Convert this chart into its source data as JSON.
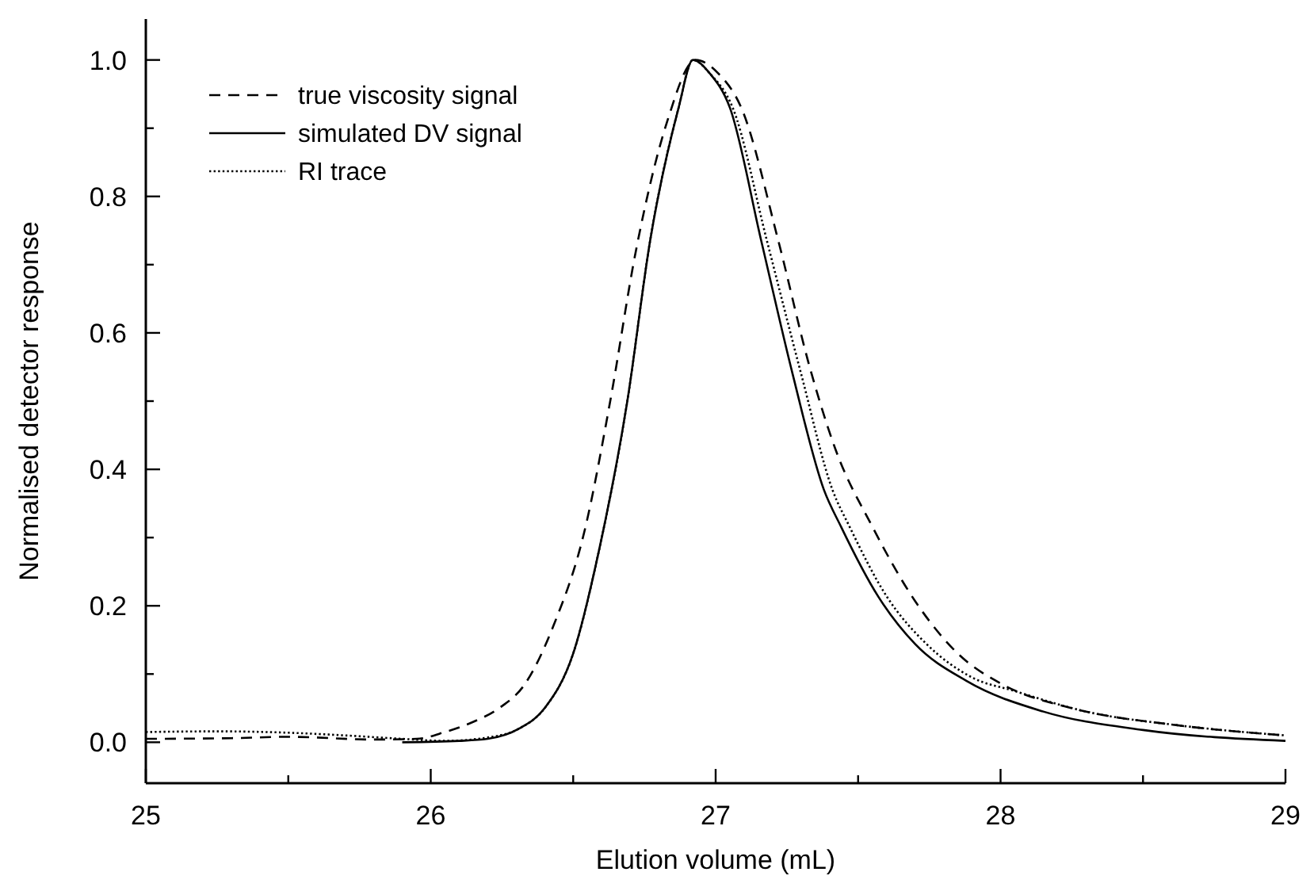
{
  "chart_data": {
    "type": "line",
    "xlabel": "Elution volume (mL)",
    "ylabel": "Normalised detector response",
    "xlim": [
      25,
      29
    ],
    "ylim": [
      -0.06,
      1.06
    ],
    "xticks": [
      25,
      {
        "value": 25.5,
        "label": null
      },
      26,
      {
        "value": 26.5,
        "label": null
      },
      27,
      {
        "value": 27.5,
        "label": null
      },
      28,
      {
        "value": 28.5,
        "label": null
      },
      29
    ],
    "yticks": [
      {
        "value": 0,
        "label": "0.0"
      },
      {
        "value": 0.1,
        "label": null
      },
      0.2,
      {
        "value": 0.3,
        "label": null
      },
      0.4,
      {
        "value": 0.5,
        "label": null
      },
      0.6,
      {
        "value": 0.7,
        "label": null
      },
      0.8,
      {
        "value": 0.9,
        "label": null
      },
      {
        "value": 1,
        "label": "1.0"
      }
    ],
    "grid": false,
    "legend": "top left",
    "series": [
      {
        "name": "true viscosity signal",
        "color": "#000000",
        "line_style": "dashed",
        "x": [
          25,
          25.3,
          25.5,
          25.8,
          25.95,
          26.05,
          26.15,
          26.24,
          26.33,
          26.43,
          26.54,
          26.63,
          26.72,
          26.83,
          26.93,
          27.01,
          27.09,
          27.22,
          27.33,
          27.42,
          27.55,
          27.7,
          27.85,
          28.01,
          28.25,
          28.62,
          29
        ],
        "values": [
          0.005,
          0.006,
          0.008,
          0.004,
          0.005,
          0.015,
          0.03,
          0.05,
          0.085,
          0.17,
          0.31,
          0.5,
          0.72,
          0.91,
          1.0,
          0.98,
          0.93,
          0.735,
          0.55,
          0.43,
          0.316,
          0.207,
          0.13,
          0.084,
          0.05,
          0.025,
          0.01
        ]
      },
      {
        "name": "simulated DV signal",
        "color": "#000000",
        "line_style": "solid",
        "x": [
          25.9,
          26.1,
          26.2,
          26.31,
          26.4,
          26.5,
          26.59,
          26.69,
          26.77,
          26.87,
          26.92,
          26.98,
          27.05,
          27.16,
          27.27,
          27.38,
          27.44,
          27.57,
          27.7,
          27.88,
          28.15,
          28.5,
          29
        ],
        "values": [
          0.0,
          0.002,
          0.005,
          0.02,
          0.05,
          0.13,
          0.28,
          0.5,
          0.735,
          0.93,
          1.0,
          0.98,
          0.93,
          0.735,
          0.54,
          0.37,
          0.316,
          0.214,
          0.144,
          0.09,
          0.045,
          0.018,
          0.002
        ]
      },
      {
        "name": "RI trace",
        "color": "#000000",
        "line_style": "dotted",
        "x": [
          25,
          25.25,
          25.5,
          25.7,
          25.9,
          26.05,
          26.2,
          26.31,
          26.4,
          26.5,
          26.59,
          26.69,
          26.77,
          26.87,
          26.92,
          26.98,
          27.06,
          27.18,
          27.3,
          27.41,
          27.47,
          27.6,
          27.74,
          27.9,
          28.05,
          28.3,
          28.62,
          29
        ],
        "values": [
          0.015,
          0.016,
          0.014,
          0.01,
          0.005,
          0.002,
          0.007,
          0.02,
          0.05,
          0.13,
          0.28,
          0.5,
          0.735,
          0.93,
          1.0,
          0.98,
          0.93,
          0.735,
          0.54,
          0.37,
          0.316,
          0.214,
          0.144,
          0.095,
          0.075,
          0.045,
          0.025,
          0.01
        ]
      }
    ]
  }
}
